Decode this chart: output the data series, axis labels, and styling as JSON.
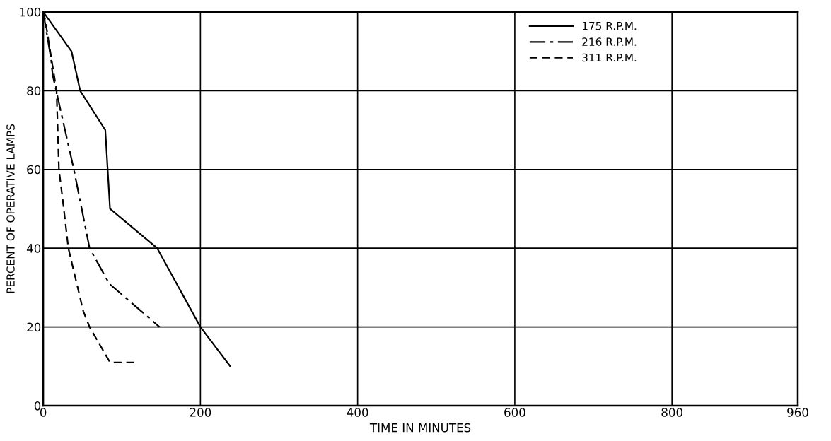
{
  "chart_data": {
    "type": "line",
    "xlabel": "TIME IN MINUTES",
    "ylabel": "PERCENT OF OPERATIVE LAMPS",
    "xlim": [
      0,
      960
    ],
    "ylim": [
      0,
      100
    ],
    "xticks": [
      0,
      200,
      400,
      600,
      800,
      960
    ],
    "yticks": [
      0,
      20,
      40,
      60,
      80,
      100
    ],
    "grid": true,
    "legend": "top right",
    "marker": "none",
    "series": [
      {
        "name": "175 R.P.M.",
        "color": "#000000",
        "line_style": "solid",
        "x": [
          0,
          36,
          47,
          79,
          85,
          145,
          200,
          238
        ],
        "values": [
          100,
          90,
          80,
          70,
          50,
          40,
          20,
          10
        ]
      },
      {
        "name": "216 R.P.M.",
        "color": "#000000",
        "line_style": "dashdot",
        "x": [
          0,
          10,
          12,
          39,
          59,
          84,
          148
        ],
        "values": [
          100,
          88,
          84,
          60,
          40,
          31,
          20
        ]
      },
      {
        "name": "311 R.P.M.",
        "color": "#000000",
        "line_style": "dashed",
        "x": [
          0,
          2.5,
          17,
          20,
          25,
          32,
          51,
          59,
          85,
          118
        ],
        "values": [
          100,
          98,
          80,
          60,
          52,
          40,
          24,
          20,
          11,
          11
        ]
      }
    ]
  }
}
